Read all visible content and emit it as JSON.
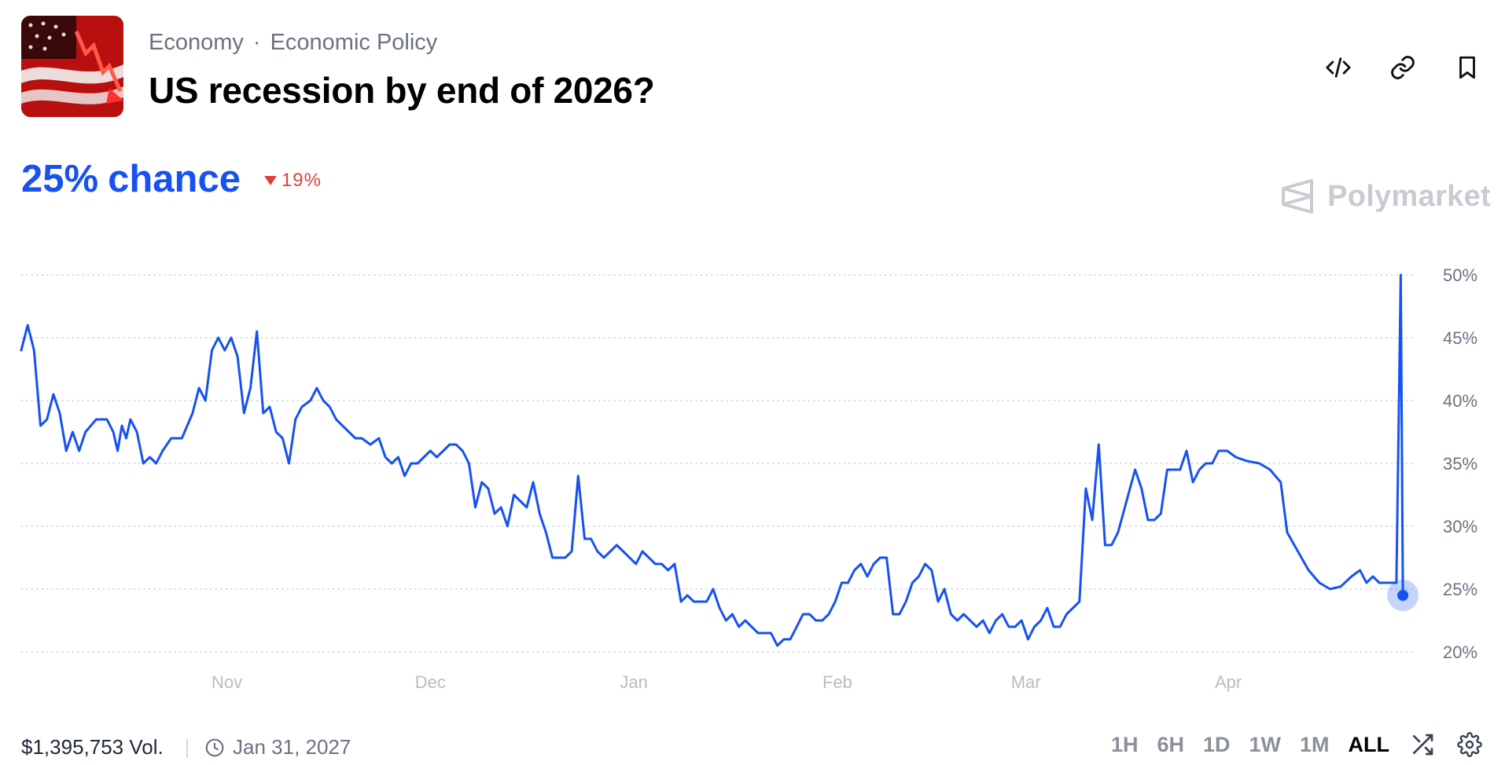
{
  "market": {
    "category": "Economy",
    "subcategory": "Economic Policy",
    "separator": "·",
    "title": "US recession by end of 2026?",
    "chance_value": "25%",
    "chance_suffix": "chance",
    "delta": "19%",
    "delta_direction": "down",
    "volume": "$1,395,753 Vol.",
    "end_date": "Jan 31, 2027"
  },
  "brand": {
    "name": "Polymarket"
  },
  "header_icons": [
    "embed-icon",
    "link-icon",
    "bookmark-icon"
  ],
  "time_ranges": [
    "1H",
    "6H",
    "1D",
    "1W",
    "1M",
    "ALL"
  ],
  "active_range": "ALL",
  "colors": {
    "line": "#1652f0",
    "down": "#e0403c",
    "grid": "#d1d5db"
  },
  "chart_data": {
    "type": "line",
    "xlabel": "",
    "ylabel": "",
    "y_ticks": [
      "20%",
      "25%",
      "30%",
      "35%",
      "40%",
      "45%",
      "50%"
    ],
    "x_ticks": [
      "Nov",
      "Dec",
      "Jan",
      "Feb",
      "Mar",
      "Apr"
    ],
    "ylim": [
      19,
      51
    ],
    "y_unit": "%",
    "grid": true,
    "series": [
      {
        "values": [
          [
            0,
            44
          ],
          [
            0.6,
            46
          ],
          [
            1.2,
            44
          ],
          [
            1.8,
            38
          ],
          [
            2.4,
            38.5
          ],
          [
            3.0,
            40.5
          ],
          [
            3.6,
            39
          ],
          [
            4.2,
            36
          ],
          [
            4.8,
            37.5
          ],
          [
            5.4,
            36
          ],
          [
            6.0,
            37.5
          ],
          [
            7,
            38.5
          ],
          [
            8,
            38.5
          ],
          [
            8.6,
            37.5
          ],
          [
            9.0,
            36
          ],
          [
            9.4,
            38
          ],
          [
            9.8,
            37
          ],
          [
            10.2,
            38.5
          ],
          [
            10.8,
            37.5
          ],
          [
            11.4,
            35
          ],
          [
            12.0,
            35.5
          ],
          [
            12.6,
            35
          ],
          [
            13.2,
            36
          ],
          [
            14.0,
            37
          ],
          [
            15.0,
            37
          ],
          [
            16.0,
            39
          ],
          [
            16.6,
            41
          ],
          [
            17.2,
            40
          ],
          [
            17.8,
            44
          ],
          [
            18.4,
            45
          ],
          [
            19.0,
            44
          ],
          [
            19.6,
            45
          ],
          [
            20.2,
            43.5
          ],
          [
            20.8,
            39
          ],
          [
            21.4,
            41
          ],
          [
            22.0,
            45.5
          ],
          [
            22.6,
            39
          ],
          [
            23.2,
            39.5
          ],
          [
            23.8,
            37.5
          ],
          [
            24.4,
            37
          ],
          [
            25.0,
            35
          ],
          [
            25.6,
            38.5
          ],
          [
            26.2,
            39.5
          ],
          [
            27.0,
            40
          ],
          [
            27.6,
            41
          ],
          [
            28.2,
            40
          ],
          [
            28.8,
            39.5
          ],
          [
            29.4,
            38.5
          ],
          [
            30.0,
            38
          ],
          [
            30.6,
            37.5
          ],
          [
            31.2,
            37
          ],
          [
            31.8,
            37
          ],
          [
            32.6,
            36.5
          ],
          [
            33.4,
            37
          ],
          [
            34.0,
            35.5
          ],
          [
            34.6,
            35
          ],
          [
            35.2,
            35.5
          ],
          [
            35.8,
            34
          ],
          [
            36.4,
            35
          ],
          [
            37.0,
            35
          ],
          [
            37.6,
            35.5
          ],
          [
            38.2,
            36
          ],
          [
            38.8,
            35.5
          ],
          [
            39.4,
            36
          ],
          [
            40.0,
            36.5
          ],
          [
            40.6,
            36.5
          ],
          [
            41.2,
            36
          ],
          [
            41.8,
            35
          ],
          [
            42.4,
            31.5
          ],
          [
            43.0,
            33.5
          ],
          [
            43.6,
            33
          ],
          [
            44.2,
            31
          ],
          [
            44.8,
            31.5
          ],
          [
            45.4,
            30
          ],
          [
            46.0,
            32.5
          ],
          [
            46.6,
            32
          ],
          [
            47.2,
            31.5
          ],
          [
            47.8,
            33.5
          ],
          [
            48.4,
            31
          ],
          [
            49.0,
            29.5
          ],
          [
            49.6,
            27.5
          ],
          [
            50.2,
            27.5
          ],
          [
            50.8,
            27.5
          ],
          [
            51.4,
            28
          ],
          [
            52.0,
            34
          ],
          [
            52.6,
            29
          ],
          [
            53.2,
            29
          ],
          [
            53.8,
            28
          ],
          [
            54.4,
            27.5
          ],
          [
            55.0,
            28
          ],
          [
            55.6,
            28.5
          ],
          [
            56.2,
            28
          ],
          [
            56.8,
            27.5
          ],
          [
            57.4,
            27
          ],
          [
            58.0,
            28
          ],
          [
            58.6,
            27.5
          ],
          [
            59.2,
            27
          ],
          [
            59.8,
            27
          ],
          [
            60.4,
            26.5
          ],
          [
            61.0,
            27
          ],
          [
            61.6,
            24
          ],
          [
            62.2,
            24.5
          ],
          [
            62.8,
            24
          ],
          [
            63.4,
            24
          ],
          [
            64.0,
            24
          ],
          [
            64.6,
            25
          ],
          [
            65.2,
            23.5
          ],
          [
            65.8,
            22.5
          ],
          [
            66.4,
            23
          ],
          [
            67.0,
            22
          ],
          [
            67.6,
            22.5
          ],
          [
            68.2,
            22
          ],
          [
            68.8,
            21.5
          ],
          [
            69.4,
            21.5
          ],
          [
            70.0,
            21.5
          ],
          [
            70.6,
            20.5
          ],
          [
            71.2,
            21
          ],
          [
            71.8,
            21
          ],
          [
            72.4,
            22
          ],
          [
            73.0,
            23
          ],
          [
            73.6,
            23
          ],
          [
            74.2,
            22.5
          ],
          [
            74.8,
            22.5
          ],
          [
            75.4,
            23
          ],
          [
            76.0,
            24
          ],
          [
            76.6,
            25.5
          ],
          [
            77.2,
            25.5
          ],
          [
            77.8,
            26.5
          ],
          [
            78.4,
            27
          ],
          [
            79.0,
            26
          ],
          [
            79.6,
            27
          ],
          [
            80.2,
            27.5
          ],
          [
            80.8,
            27.5
          ],
          [
            81.4,
            23
          ],
          [
            82.0,
            23
          ],
          [
            82.6,
            24
          ],
          [
            83.2,
            25.5
          ],
          [
            83.8,
            26
          ],
          [
            84.4,
            27
          ],
          [
            85.0,
            26.5
          ],
          [
            85.6,
            24
          ],
          [
            86.2,
            25
          ],
          [
            86.8,
            23
          ],
          [
            87.4,
            22.5
          ],
          [
            88.0,
            23
          ],
          [
            88.6,
            22.5
          ],
          [
            89.2,
            22
          ],
          [
            89.8,
            22.5
          ],
          [
            90.4,
            21.5
          ],
          [
            91.0,
            22.5
          ],
          [
            91.6,
            23
          ],
          [
            92.2,
            22
          ],
          [
            92.8,
            22
          ],
          [
            93.4,
            22.5
          ],
          [
            94.0,
            21
          ],
          [
            94.6,
            22
          ],
          [
            95.2,
            22.5
          ],
          [
            95.8,
            23.5
          ],
          [
            96.4,
            22
          ],
          [
            97.0,
            22
          ],
          [
            97.6,
            23
          ],
          [
            98.2,
            23.5
          ],
          [
            98.8,
            24
          ],
          [
            99.4,
            33
          ],
          [
            100.0,
            30.5
          ],
          [
            100.6,
            36.5
          ],
          [
            101.2,
            28.5
          ],
          [
            101.8,
            28.5
          ],
          [
            102.4,
            29.5
          ],
          [
            103.2,
            32
          ],
          [
            104.0,
            34.5
          ],
          [
            104.6,
            33
          ],
          [
            105.2,
            30.5
          ],
          [
            105.8,
            30.5
          ],
          [
            106.4,
            31
          ],
          [
            107.0,
            34.5
          ],
          [
            107.6,
            34.5
          ],
          [
            108.2,
            34.5
          ],
          [
            108.8,
            36
          ],
          [
            109.4,
            33.5
          ],
          [
            110.0,
            34.5
          ],
          [
            110.6,
            35
          ],
          [
            111.2,
            35
          ],
          [
            111.8,
            36
          ],
          [
            112.6,
            36
          ],
          [
            113.4,
            35.5
          ],
          [
            114.4,
            35.2
          ],
          [
            115.6,
            35
          ],
          [
            116.6,
            34.5
          ],
          [
            117.6,
            33.5
          ],
          [
            118.2,
            29.5
          ],
          [
            119.2,
            28
          ],
          [
            120.2,
            26.5
          ],
          [
            121.2,
            25.5
          ],
          [
            122.2,
            25
          ],
          [
            123.2,
            25.2
          ],
          [
            124.2,
            26
          ],
          [
            125.0,
            26.5
          ],
          [
            125.6,
            25.5
          ],
          [
            126.2,
            26
          ],
          [
            126.8,
            25.5
          ],
          [
            127.8,
            25.5
          ],
          [
            128.4,
            25.5
          ],
          [
            128.8,
            50
          ],
          [
            129.0,
            25
          ]
        ]
      }
    ],
    "x_tick_positions": [
      19.2,
      38.2,
      57.2,
      76.2,
      93.8,
      112.7
    ],
    "x_range": [
      0,
      129.8
    ],
    "last_value": 25
  }
}
